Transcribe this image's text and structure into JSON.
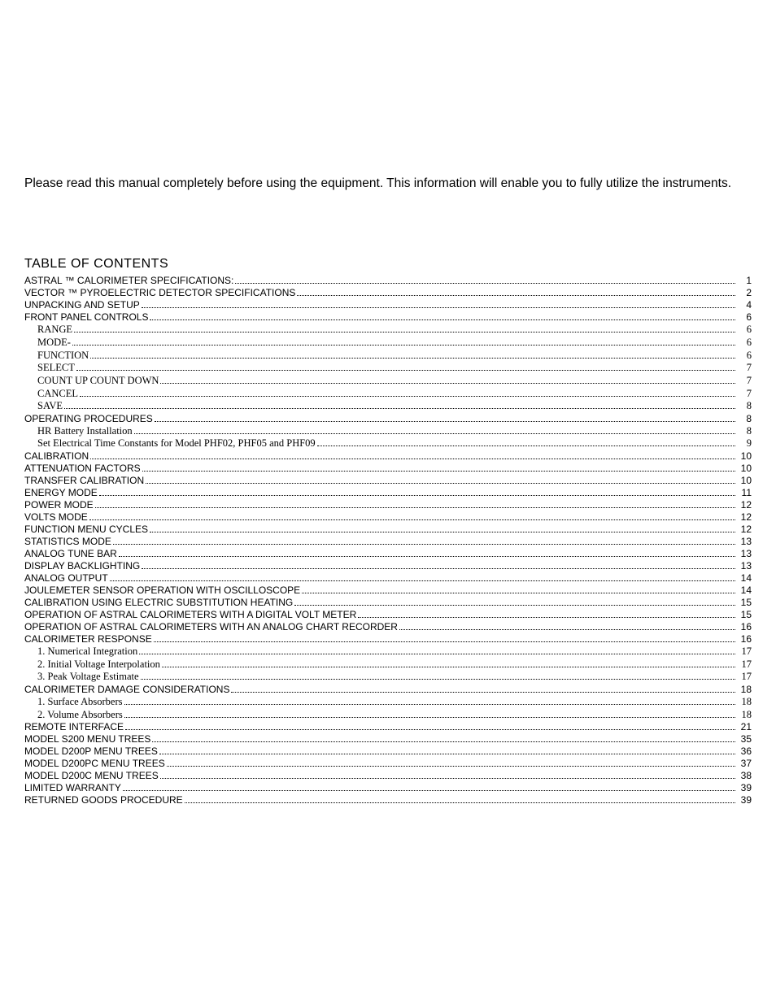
{
  "intro_text": "Please read this manual completely before using the equipment. This information will enable you to fully utilize the instruments.",
  "toc_title": "TABLE OF CONTENTS",
  "entries": [
    {
      "label": "ASTRAL ™  CALORIMETER SPECIFICATIONS:",
      "page": "1",
      "indent": 0,
      "serif": false
    },
    {
      "label": "VECTOR ™  PYROELECTRIC DETECTOR SPECIFICATIONS",
      "page": "2",
      "indent": 0,
      "serif": false
    },
    {
      "label": "UNPACKING AND SETUP",
      "page": "4",
      "indent": 0,
      "serif": false
    },
    {
      "label": "FRONT PANEL CONTROLS",
      "page": "6",
      "indent": 0,
      "serif": false
    },
    {
      "label": "RANGE",
      "page": "6",
      "indent": 1,
      "serif": true
    },
    {
      "label": "MODE-",
      "page": "6",
      "indent": 1,
      "serif": true
    },
    {
      "label": "FUNCTION",
      "page": "6",
      "indent": 1,
      "serif": true
    },
    {
      "label": "SELECT",
      "page": "7",
      "indent": 1,
      "serif": true
    },
    {
      "label": "COUNT UP COUNT DOWN",
      "page": "7",
      "indent": 1,
      "serif": true
    },
    {
      "label": "CANCEL",
      "page": "7",
      "indent": 1,
      "serif": true
    },
    {
      "label": "SAVE",
      "page": "8",
      "indent": 1,
      "serif": true
    },
    {
      "label": "OPERATING PROCEDURES",
      "page": "8",
      "indent": 0,
      "serif": false
    },
    {
      "label": "HR Battery Installation",
      "page": "8",
      "indent": 1,
      "serif": true
    },
    {
      "label": "Set Electrical Time Constants for Model PHF02, PHF05 and PHF09",
      "page": "9",
      "indent": 1,
      "serif": true
    },
    {
      "label": "CALIBRATION",
      "page": "10",
      "indent": 0,
      "serif": false
    },
    {
      "label": "ATTENUATION FACTORS",
      "page": "10",
      "indent": 0,
      "serif": false
    },
    {
      "label": "TRANSFER CALIBRATION",
      "page": "10",
      "indent": 0,
      "serif": false
    },
    {
      "label": "ENERGY MODE",
      "page": "11",
      "indent": 0,
      "serif": false
    },
    {
      "label": "POWER MODE",
      "page": "12",
      "indent": 0,
      "serif": false
    },
    {
      "label": "VOLTS MODE",
      "page": "12",
      "indent": 0,
      "serif": false
    },
    {
      "label": "FUNCTION MENU CYCLES",
      "page": "12",
      "indent": 0,
      "serif": false
    },
    {
      "label": "STATISTICS MODE",
      "page": "13",
      "indent": 0,
      "serif": false
    },
    {
      "label": "ANALOG TUNE BAR",
      "page": "13",
      "indent": 0,
      "serif": false
    },
    {
      "label": "DISPLAY BACKLIGHTING",
      "page": "13",
      "indent": 0,
      "serif": false
    },
    {
      "label": "ANALOG OUTPUT",
      "page": "14",
      "indent": 0,
      "serif": false
    },
    {
      "label": "JOULEMETER SENSOR OPERATION WITH OSCILLOSCOPE",
      "page": "14",
      "indent": 0,
      "serif": false
    },
    {
      "label": "CALIBRATION USING ELECTRIC SUBSTITUTION HEATING",
      "page": "15",
      "indent": 0,
      "serif": false
    },
    {
      "label": "OPERATION OF ASTRAL CALORIMETERS WITH A DIGITAL VOLT METER",
      "page": "15",
      "indent": 0,
      "serif": false
    },
    {
      "label": "OPERATION OF ASTRAL CALORIMETERS WITH AN ANALOG CHART RECORDER",
      "page": "16",
      "indent": 0,
      "serif": false
    },
    {
      "label": "CALORIMETER RESPONSE",
      "page": "16",
      "indent": 0,
      "serif": false
    },
    {
      "label": "1. Numerical Integration",
      "page": "17",
      "indent": 1,
      "serif": true
    },
    {
      "label": "2. Initial Voltage Interpolation",
      "page": "17",
      "indent": 1,
      "serif": true
    },
    {
      "label": "3. Peak Voltage Estimate",
      "page": "17",
      "indent": 1,
      "serif": true
    },
    {
      "label": "CALORIMETER DAMAGE CONSIDERATIONS",
      "page": "18",
      "indent": 0,
      "serif": false
    },
    {
      "label": "1. Surface Absorbers",
      "page": "18",
      "indent": 1,
      "serif": true
    },
    {
      "label": "2. Volume Absorbers",
      "page": "18",
      "indent": 1,
      "serif": true
    },
    {
      "label": "REMOTE INTERFACE",
      "page": "21",
      "indent": 0,
      "serif": false
    },
    {
      "label": "MODEL S200 MENU TREES",
      "page": "35",
      "indent": 0,
      "serif": false
    },
    {
      "label": "MODEL D200P MENU TREES",
      "page": "36",
      "indent": 0,
      "serif": false
    },
    {
      "label": "MODEL D200PC MENU TREES",
      "page": "37",
      "indent": 0,
      "serif": false
    },
    {
      "label": "MODEL D200C MENU TREES",
      "page": "38",
      "indent": 0,
      "serif": false
    },
    {
      "label": "LIMITED WARRANTY",
      "page": "39",
      "indent": 0,
      "serif": false
    },
    {
      "label": "RETURNED GOODS PROCEDURE",
      "page": "39",
      "indent": 0,
      "serif": false
    }
  ]
}
